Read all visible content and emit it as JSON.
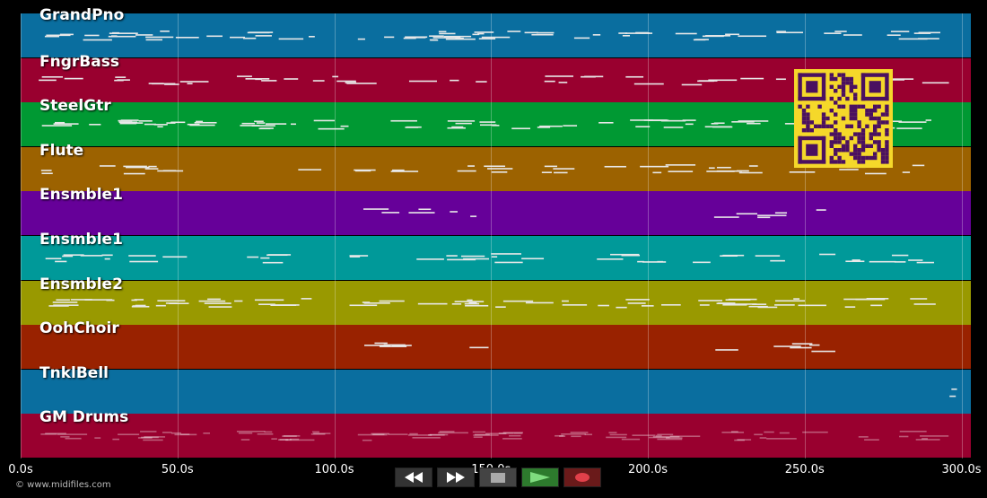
{
  "tracks": [
    {
      "name": "GrandPno",
      "color": "#0a6e9f",
      "density": "high"
    },
    {
      "name": "FngrBass",
      "color": "#99002f",
      "density": "medium"
    },
    {
      "name": "SteelGtr",
      "color": "#009933",
      "density": "high"
    },
    {
      "name": "Flute",
      "color": "#9c6200",
      "density": "medium"
    },
    {
      "name": "Ensmble1",
      "color": "#660099",
      "density": "low"
    },
    {
      "name": "Ensmble1",
      "color": "#009999",
      "density": "medium"
    },
    {
      "name": "Ensmble2",
      "color": "#999900",
      "density": "high"
    },
    {
      "name": "OohChoir",
      "color": "#992200",
      "density": "low"
    },
    {
      "name": "TnklBell",
      "color": "#0a6e9f",
      "density": "tiny"
    },
    {
      "name": "GM Drums",
      "color": "#99002f",
      "density": "dense-faint"
    }
  ],
  "timeline": {
    "max_seconds": 303,
    "ticks": [
      {
        "label": "0.0s",
        "value": 0
      },
      {
        "label": "50.0s",
        "value": 50
      },
      {
        "label": "100.0s",
        "value": 100
      },
      {
        "label": "150.0s",
        "value": 150
      },
      {
        "label": "200.0s",
        "value": 200
      },
      {
        "label": "250.0s",
        "value": 250
      },
      {
        "label": "300.0s",
        "value": 300
      }
    ]
  },
  "copyright": "© www.midifiles.com",
  "transport": {
    "rewind_icon": "rewind-icon",
    "forward_icon": "fast-forward-icon",
    "stop_icon": "stop-icon",
    "play_icon": "play-icon",
    "record_icon": "record-icon"
  },
  "qr_code": {
    "color": "#f5d82a",
    "fg": "#4a1060"
  }
}
